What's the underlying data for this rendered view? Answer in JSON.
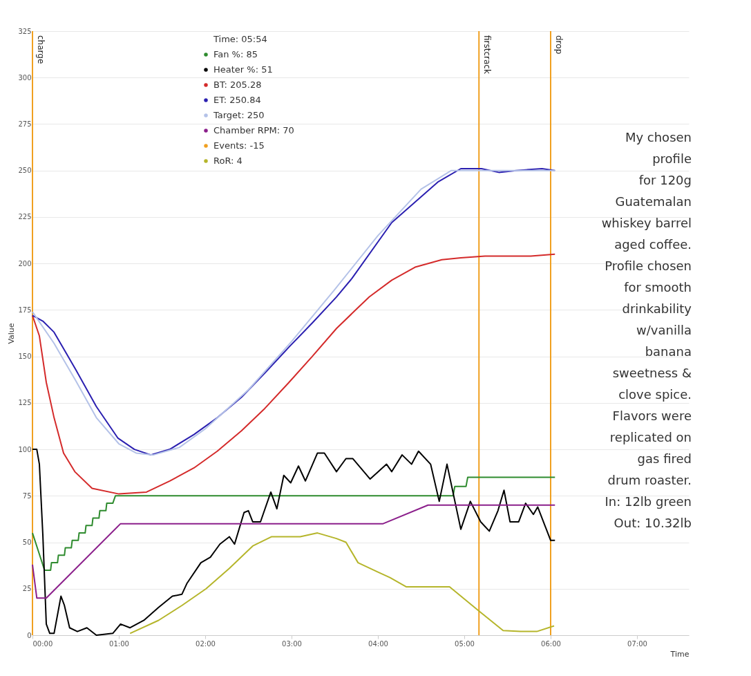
{
  "chart_data": {
    "type": "line",
    "xlabel": "Time",
    "ylabel": "Value",
    "xlim": [
      0,
      7.6
    ],
    "ylim": [
      0,
      325
    ],
    "xticks": [
      {
        "value": 0,
        "label": "00:00"
      },
      {
        "value": 1,
        "label": "01:00"
      },
      {
        "value": 2,
        "label": "02:00"
      },
      {
        "value": 3,
        "label": "03:00"
      },
      {
        "value": 4,
        "label": "04:00"
      },
      {
        "value": 5,
        "label": "05:00"
      },
      {
        "value": 6,
        "label": "06:00"
      },
      {
        "value": 7,
        "label": "07:00"
      }
    ],
    "yticks": [
      0,
      25,
      50,
      75,
      100,
      125,
      150,
      175,
      200,
      225,
      250,
      275,
      300,
      325
    ],
    "grid": "y",
    "line_style": "solid",
    "marker": "none",
    "series": [
      {
        "color": "#2e8b2e",
        "x": [
          0,
          0.07,
          0.14,
          0.21,
          0.22,
          0.29,
          0.3,
          0.37,
          0.38,
          0.45,
          0.46,
          0.53,
          0.54,
          0.61,
          0.62,
          0.69,
          0.7,
          0.77,
          0.78,
          0.85,
          0.86,
          0.93,
          0.96,
          4.87,
          4.89,
          5.02,
          5.04,
          6.05
        ],
        "values": [
          55,
          45,
          35,
          35,
          39,
          39,
          43,
          43,
          47,
          47,
          51,
          51,
          55,
          55,
          59,
          59,
          63,
          63,
          67,
          67,
          71,
          71,
          75,
          75,
          80,
          80,
          85,
          85
        ]
      },
      {
        "color": "#000000",
        "x": [
          0,
          0.05,
          0.08,
          0.12,
          0.16,
          0.2,
          0.25,
          0.33,
          0.37,
          0.43,
          0.52,
          0.63,
          0.74,
          0.93,
          1.02,
          1.13,
          1.29,
          1.46,
          1.62,
          1.73,
          1.79,
          1.95,
          2.06,
          2.17,
          2.28,
          2.34,
          2.45,
          2.5,
          2.55,
          2.64,
          2.76,
          2.83,
          2.91,
          2.99,
          3.08,
          3.16,
          3.3,
          3.38,
          3.52,
          3.63,
          3.71,
          3.91,
          4.1,
          4.16,
          4.28,
          4.39,
          4.47,
          4.61,
          4.71,
          4.8,
          4.96,
          5.07,
          5.19,
          5.29,
          5.39,
          5.46,
          5.53,
          5.63,
          5.71,
          5.8,
          5.85,
          5.95,
          6.0,
          6.05
        ],
        "values": [
          100,
          100,
          92,
          54,
          6,
          1,
          1,
          21,
          16,
          4,
          2,
          4,
          0,
          1,
          6,
          4,
          8,
          15,
          21,
          22,
          28,
          39,
          42,
          49,
          53,
          49,
          66,
          67,
          61,
          61,
          77,
          68,
          86,
          82,
          91,
          83,
          98,
          98,
          88,
          95,
          95,
          84,
          92,
          88,
          97,
          92,
          99,
          92,
          72,
          92,
          57,
          72,
          61,
          56,
          67,
          78,
          61,
          61,
          71,
          65,
          69,
          57,
          51,
          51
        ]
      },
      {
        "color": "#d42a2a",
        "x": [
          0,
          0.08,
          0.16,
          0.25,
          0.36,
          0.49,
          0.69,
          1.0,
          1.32,
          1.59,
          1.87,
          2.14,
          2.42,
          2.69,
          2.97,
          3.24,
          3.52,
          3.72,
          3.9,
          4.16,
          4.43,
          4.74,
          4.96,
          5.24,
          5.77,
          6.05
        ],
        "values": [
          172,
          161,
          136,
          117,
          98,
          88,
          79,
          76,
          77,
          83,
          90,
          99,
          110,
          122,
          136,
          150,
          165,
          174,
          182,
          191,
          198,
          202,
          203,
          204,
          204,
          205
        ]
      },
      {
        "color": "#2a1fb0",
        "x": [
          0,
          0.12,
          0.25,
          0.5,
          0.74,
          0.99,
          1.18,
          1.37,
          1.59,
          1.87,
          2.14,
          2.42,
          2.69,
          2.97,
          3.24,
          3.52,
          3.7,
          4.16,
          4.7,
          4.96,
          5.2,
          5.4,
          5.6,
          5.9,
          6.05
        ],
        "values": [
          172,
          169,
          163,
          143,
          123,
          106,
          100,
          97,
          100,
          108,
          117,
          128,
          141,
          155,
          168,
          182,
          192,
          222,
          244,
          251,
          251,
          249,
          250,
          251,
          250
        ]
      },
      {
        "color": "#b4c2e8",
        "x": [
          0,
          0.25,
          0.5,
          0.74,
          1.0,
          1.2,
          1.4,
          1.7,
          2.0,
          2.5,
          3.0,
          3.5,
          4.0,
          4.5,
          4.85,
          6.05
        ],
        "values": [
          174,
          157,
          137,
          117,
          103,
          98,
          97,
          101,
          111,
          132,
          158,
          186,
          215,
          240,
          250,
          250
        ]
      },
      {
        "color": "#8b1f8b",
        "x": [
          0,
          0.05,
          0.16,
          1.02,
          4.06,
          4.58,
          6.05
        ],
        "values": [
          38,
          20,
          20,
          60,
          60,
          70,
          70
        ]
      },
      {
        "color": "#b5b52a",
        "x": [
          1.13,
          1.46,
          1.73,
          2.01,
          2.28,
          2.55,
          2.77,
          3.1,
          3.3,
          3.52,
          3.63,
          3.77,
          4.0,
          4.14,
          4.33,
          4.61,
          4.83,
          5.17,
          5.45,
          5.65,
          5.84,
          6.04
        ],
        "values": [
          1,
          8,
          16,
          25,
          36,
          48,
          53,
          53,
          55,
          52,
          50,
          39,
          34,
          31,
          26,
          26,
          26,
          13,
          2.5,
          2,
          2,
          5
        ]
      }
    ],
    "ref_lines": [
      {
        "axis": "x",
        "value": 0,
        "label": "charge",
        "color": "#f0a020"
      },
      {
        "axis": "x",
        "value": 5.17,
        "label": "firstcrack",
        "color": "#f0a020"
      },
      {
        "axis": "x",
        "value": 6.0,
        "label": "drop",
        "color": "#f0a020"
      }
    ],
    "annotations": [
      "Time: 05:54\nFan %: 85\nHeater %: 51\nBT: 205.28\nET: 250.84\nTarget: 250\nChamber RPM: 70\nEvents: -15\nRoR: 4",
      "My chosen\nprofile\nfor 120g\nGuatemalan\nwhiskey barrel\naged coffee.\n\nProfile chosen\nfor smooth\ndrinkability\nw/vanilla\nbanana\nsweetness &\nclove spice.\n\nFlavors were\nreplicated on\ngas fired\ndrum roaster.\n\nIn: 12lb green\nOut: 10.32lb"
    ]
  }
}
